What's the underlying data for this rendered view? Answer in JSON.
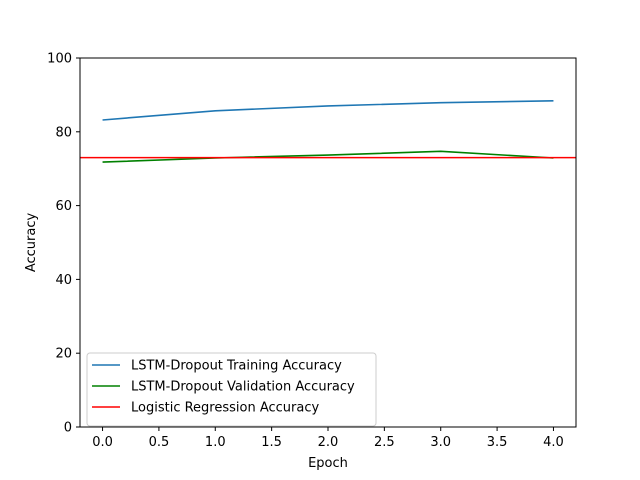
{
  "chart_data": {
    "type": "line",
    "title": "",
    "xlabel": "Epoch",
    "ylabel": "Accuracy",
    "xlim": [
      -0.2,
      4.2
    ],
    "ylim": [
      0,
      100
    ],
    "xticks": [
      0.0,
      0.5,
      1.0,
      1.5,
      2.0,
      2.5,
      3.0,
      3.5,
      4.0
    ],
    "xtick_labels": [
      "0.0",
      "0.5",
      "1.0",
      "1.5",
      "2.0",
      "2.5",
      "3.0",
      "3.5",
      "4.0"
    ],
    "yticks": [
      0,
      20,
      40,
      60,
      80,
      100
    ],
    "ytick_labels": [
      "0",
      "20",
      "40",
      "60",
      "80",
      "100"
    ],
    "grid": false,
    "legend_position": "lower-left",
    "series": [
      {
        "name": "LSTM-Dropout Training Accuracy",
        "color": "#1f77b4",
        "x": [
          0,
          1,
          2,
          3,
          4
        ],
        "y": [
          83.2,
          85.7,
          87.0,
          87.9,
          88.4
        ]
      },
      {
        "name": "LSTM-Dropout Validation Accuracy",
        "color": "#008000",
        "x": [
          0,
          1,
          2,
          3,
          4
        ],
        "y": [
          71.8,
          72.9,
          73.7,
          74.7,
          72.9
        ]
      }
    ],
    "hlines": [
      {
        "name": "Logistic Regression Accuracy",
        "color": "#ff0000",
        "y": 73.0
      }
    ]
  }
}
